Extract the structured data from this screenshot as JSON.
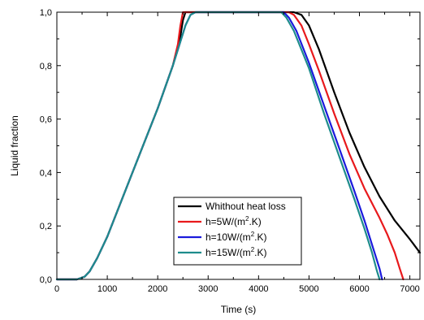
{
  "chart_data": {
    "type": "line",
    "xlabel": "Time (s)",
    "ylabel": "Liquid fraction",
    "xlim": [
      0,
      7200
    ],
    "ylim": [
      0,
      1.0
    ],
    "x_ticks": [
      0,
      1000,
      2000,
      3000,
      4000,
      5000,
      6000,
      7000
    ],
    "x_tick_labels": [
      "0",
      "1000",
      "2000",
      "3000",
      "4000",
      "5000",
      "6000",
      "7000"
    ],
    "y_ticks": [
      0,
      0.2,
      0.4,
      0.6,
      0.8,
      1.0
    ],
    "y_tick_labels": [
      "0,0",
      "0,2",
      "0,4",
      "0,6",
      "0,8",
      "1,0"
    ],
    "grid": false,
    "legend_position": "bottom-center",
    "series": [
      {
        "name": "Whithout heat loss",
        "legend_label": {
          "before": "Whithout heat loss",
          "sup": "",
          "after": ""
        },
        "color": "#000000",
        "points": [
          [
            0,
            0
          ],
          [
            400,
            0
          ],
          [
            550,
            0.01
          ],
          [
            650,
            0.03
          ],
          [
            800,
            0.08
          ],
          [
            1000,
            0.16
          ],
          [
            1500,
            0.4
          ],
          [
            2000,
            0.64
          ],
          [
            2300,
            0.8
          ],
          [
            2450,
            0.91
          ],
          [
            2500,
            0.97
          ],
          [
            2550,
            1.0
          ],
          [
            3000,
            1.0
          ],
          [
            4000,
            1.0
          ],
          [
            4700,
            1.0
          ],
          [
            4850,
            0.99
          ],
          [
            5000,
            0.95
          ],
          [
            5200,
            0.86
          ],
          [
            5500,
            0.7
          ],
          [
            5800,
            0.55
          ],
          [
            6100,
            0.42
          ],
          [
            6400,
            0.31
          ],
          [
            6700,
            0.22
          ],
          [
            7000,
            0.15
          ],
          [
            7200,
            0.1
          ]
        ]
      },
      {
        "name": "h=5W/(m2.K)",
        "legend_label": {
          "before": "h=5W/(m",
          "sup": "2",
          "after": ".K)"
        },
        "color": "#e8191c",
        "points": [
          [
            0,
            0
          ],
          [
            400,
            0
          ],
          [
            550,
            0.01
          ],
          [
            650,
            0.03
          ],
          [
            800,
            0.08
          ],
          [
            1000,
            0.16
          ],
          [
            1500,
            0.4
          ],
          [
            2000,
            0.64
          ],
          [
            2300,
            0.8
          ],
          [
            2400,
            0.88
          ],
          [
            2450,
            0.95
          ],
          [
            2500,
            1.0
          ],
          [
            3000,
            1.0
          ],
          [
            4000,
            1.0
          ],
          [
            4600,
            1.0
          ],
          [
            4700,
            0.99
          ],
          [
            4850,
            0.95
          ],
          [
            5000,
            0.88
          ],
          [
            5200,
            0.78
          ],
          [
            5500,
            0.62
          ],
          [
            5800,
            0.47
          ],
          [
            6100,
            0.34
          ],
          [
            6400,
            0.23
          ],
          [
            6550,
            0.17
          ],
          [
            6700,
            0.1
          ],
          [
            6800,
            0.04
          ],
          [
            6870,
            0
          ]
        ]
      },
      {
        "name": "h=10W/(m2.K)",
        "legend_label": {
          "before": "h=10W/(m",
          "sup": "2",
          "after": ".K)"
        },
        "color": "#1a1adc",
        "points": [
          [
            0,
            0
          ],
          [
            400,
            0
          ],
          [
            550,
            0.01
          ],
          [
            650,
            0.03
          ],
          [
            800,
            0.08
          ],
          [
            1000,
            0.16
          ],
          [
            1500,
            0.4
          ],
          [
            2000,
            0.64
          ],
          [
            2300,
            0.8
          ],
          [
            2450,
            0.89
          ],
          [
            2550,
            0.95
          ],
          [
            2650,
            0.99
          ],
          [
            2750,
            1.0
          ],
          [
            3000,
            1.0
          ],
          [
            4000,
            1.0
          ],
          [
            4500,
            1.0
          ],
          [
            4600,
            0.98
          ],
          [
            4750,
            0.93
          ],
          [
            5000,
            0.81
          ],
          [
            5300,
            0.65
          ],
          [
            5600,
            0.49
          ],
          [
            5900,
            0.33
          ],
          [
            6100,
            0.22
          ],
          [
            6300,
            0.1
          ],
          [
            6400,
            0.04
          ],
          [
            6450,
            0
          ]
        ]
      },
      {
        "name": "h=15W/(m2.K)",
        "legend_label": {
          "before": "h=15W/(m",
          "sup": "2",
          "after": ".K)"
        },
        "color": "#1e8c8c",
        "points": [
          [
            0,
            0
          ],
          [
            400,
            0
          ],
          [
            550,
            0.01
          ],
          [
            650,
            0.03
          ],
          [
            800,
            0.08
          ],
          [
            1000,
            0.16
          ],
          [
            1500,
            0.4
          ],
          [
            2000,
            0.64
          ],
          [
            2300,
            0.8
          ],
          [
            2450,
            0.89
          ],
          [
            2550,
            0.95
          ],
          [
            2650,
            0.99
          ],
          [
            2750,
            1.0
          ],
          [
            3000,
            1.0
          ],
          [
            4000,
            1.0
          ],
          [
            4450,
            1.0
          ],
          [
            4550,
            0.98
          ],
          [
            4700,
            0.93
          ],
          [
            5000,
            0.79
          ],
          [
            5300,
            0.62
          ],
          [
            5600,
            0.46
          ],
          [
            5900,
            0.3
          ],
          [
            6100,
            0.19
          ],
          [
            6250,
            0.1
          ],
          [
            6350,
            0.03
          ],
          [
            6400,
            0
          ]
        ]
      }
    ]
  }
}
